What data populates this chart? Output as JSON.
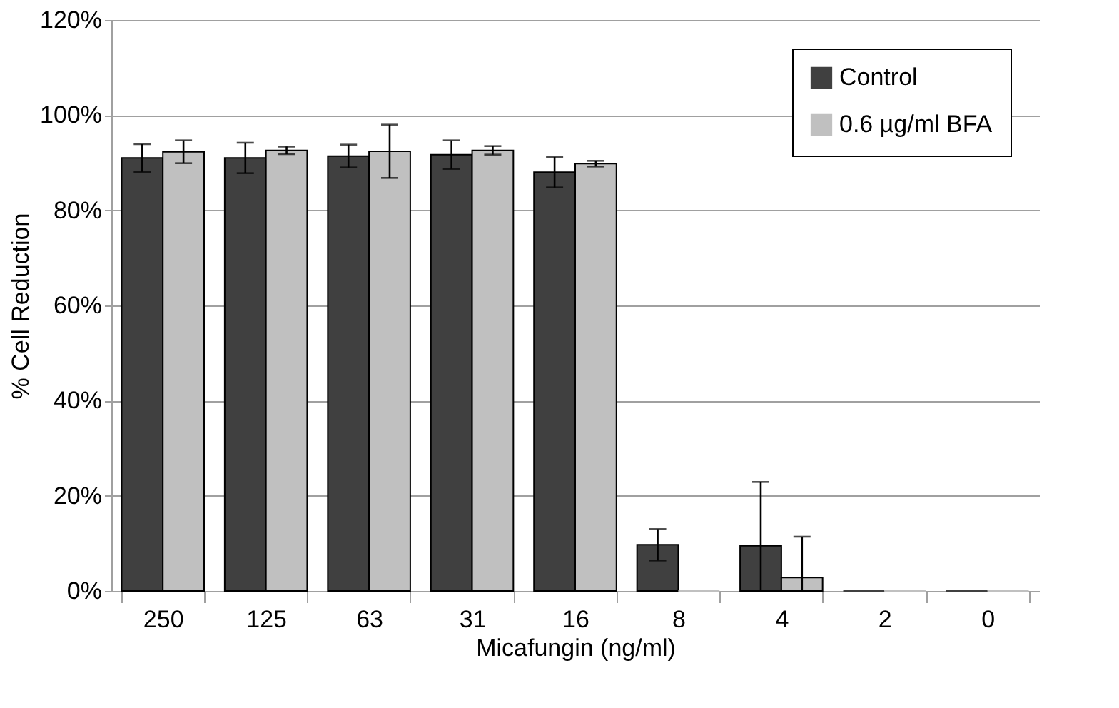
{
  "chart_data": {
    "type": "bar",
    "xlabel": "Micafungin (ng/ml)",
    "ylabel": "% Cell Reduction",
    "categories": [
      "250",
      "125",
      "63",
      "31",
      "16",
      "8",
      "4",
      "2",
      "0"
    ],
    "series": [
      {
        "name": "Control",
        "color": "#404040",
        "values": [
          91.0,
          91.0,
          91.4,
          91.7,
          88.0,
          9.7,
          9.5,
          0,
          0
        ],
        "errors": [
          2.9,
          3.2,
          2.4,
          3.0,
          3.2,
          3.3,
          13.4,
          null,
          null
        ]
      },
      {
        "name": "0.6 µg/ml BFA",
        "color": "#c0c0c0",
        "values": [
          92.3,
          92.6,
          92.4,
          92.6,
          89.8,
          0,
          2.8,
          0,
          0
        ],
        "errors": [
          2.4,
          0.8,
          5.6,
          0.9,
          0.6,
          null,
          8.6,
          null,
          null
        ]
      }
    ],
    "ylim": [
      0,
      120
    ],
    "yticks": [
      {
        "value": 0,
        "label": "0%"
      },
      {
        "value": 20,
        "label": "20%"
      },
      {
        "value": 40,
        "label": "40%"
      },
      {
        "value": 60,
        "label": "60%"
      },
      {
        "value": 80,
        "label": "80%"
      },
      {
        "value": 100,
        "label": "100%"
      },
      {
        "value": 120,
        "label": "120%"
      }
    ],
    "grid": "y",
    "legend": "top right"
  }
}
